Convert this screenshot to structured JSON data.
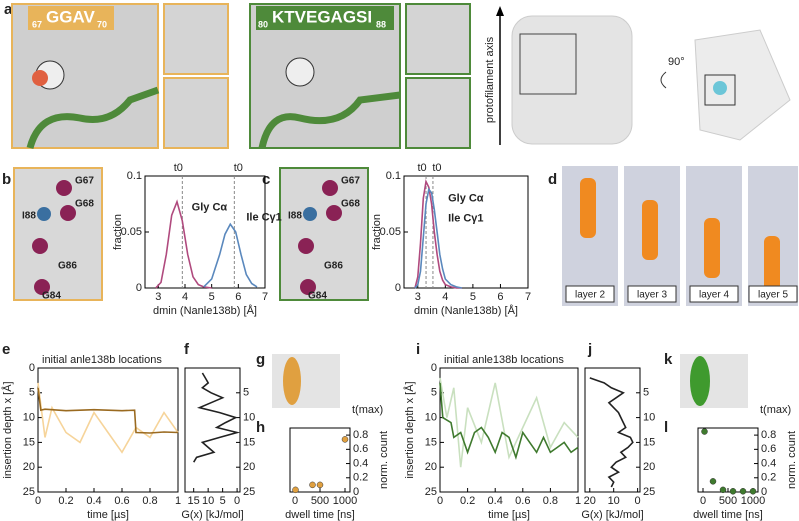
{
  "figure": {
    "panels": [
      "a",
      "b",
      "c",
      "d",
      "e",
      "f",
      "g",
      "h",
      "i",
      "j",
      "k",
      "l"
    ],
    "motif1": {
      "text": "GGAV",
      "start": "67",
      "end": "70"
    },
    "motif2": {
      "text": "KTVEGAGSI",
      "start": "80",
      "end": "88"
    },
    "axis_label": "protofilament axis",
    "rotation": "90°",
    "residues_b": [
      "G67",
      "G68",
      "I88",
      "G86",
      "G84"
    ],
    "residues_c": [
      "G67",
      "G68",
      "I88",
      "G86",
      "G84"
    ],
    "layers": [
      "layer 2",
      "layer 3",
      "layer 4",
      "layer 5"
    ]
  },
  "chart_data": [
    {
      "type": "line",
      "xlabel": "dmin (Nanle138b) [Å]",
      "ylabel": "fraction",
      "xlim": [
        2.5,
        7
      ],
      "xticks": [
        3,
        4,
        5,
        6,
        7
      ],
      "ylim": [
        0,
        0.1
      ],
      "yticks": [
        0,
        0.05,
        0.1
      ],
      "series": [
        {
          "name": "Gly Cα",
          "color": "#b04a7e",
          "x": [
            2.9,
            3.1,
            3.3,
            3.5,
            3.7,
            3.9,
            4.1,
            4.3,
            4.5,
            4.7,
            5.0
          ],
          "values": [
            0,
            0.005,
            0.03,
            0.065,
            0.077,
            0.06,
            0.03,
            0.01,
            0.003,
            0.001,
            0
          ]
        },
        {
          "name": "Ile Cγ1",
          "color": "#5a88bd",
          "x": [
            4.7,
            5.0,
            5.3,
            5.5,
            5.7,
            5.9,
            6.1,
            6.3,
            6.5,
            6.7
          ],
          "values": [
            0.001,
            0.008,
            0.03,
            0.048,
            0.057,
            0.05,
            0.03,
            0.012,
            0.004,
            0.001
          ]
        }
      ],
      "vlines": [
        {
          "value": 3.9,
          "label": "t0",
          "color": "#b04a7e"
        },
        {
          "value": 5.85,
          "label": "t0",
          "color": "#5a88bd"
        }
      ]
    },
    {
      "type": "line",
      "xlabel": "dmin (Nanle138b) [Å]",
      "ylabel": "fraction",
      "xlim": [
        2.5,
        7
      ],
      "xticks": [
        3,
        4,
        5,
        6,
        7
      ],
      "ylim": [
        0,
        0.1
      ],
      "yticks": [
        0,
        0.05,
        0.1
      ],
      "series": [
        {
          "name": "Gly Cα",
          "color": "#b04a7e",
          "x": [
            2.9,
            3.0,
            3.1,
            3.2,
            3.3,
            3.4,
            3.5,
            3.6,
            3.7,
            3.8,
            3.9,
            4.0,
            4.2,
            4.4,
            4.6
          ],
          "values": [
            0,
            0.01,
            0.04,
            0.08,
            0.095,
            0.09,
            0.075,
            0.05,
            0.03,
            0.015,
            0.007,
            0.003,
            0.001,
            0,
            0
          ]
        },
        {
          "name": "Ile Cγ1",
          "color": "#5a88bd",
          "x": [
            2.9,
            3.0,
            3.1,
            3.2,
            3.3,
            3.4,
            3.5,
            3.6,
            3.7,
            3.8,
            3.9,
            4.0,
            4.2,
            4.4,
            4.6
          ],
          "values": [
            0,
            0.003,
            0.015,
            0.045,
            0.075,
            0.088,
            0.085,
            0.07,
            0.05,
            0.03,
            0.017,
            0.008,
            0.003,
            0.001,
            0
          ]
        }
      ],
      "vlines": [
        {
          "value": 3.3,
          "label": "t0",
          "color": "#5a88bd"
        },
        {
          "value": 3.55,
          "label": "t0",
          "color": "#b04a7e"
        }
      ]
    },
    {
      "type": "line",
      "xlabel": "time [µs]",
      "ylabel": "insertion depth x [Å]",
      "annotation": "initial anle138b locations",
      "xlim": [
        0,
        1
      ],
      "xticks": [
        0,
        0.2,
        0.4,
        0.6,
        0.8,
        1
      ],
      "ylim": [
        25,
        0
      ],
      "yticks": [
        0,
        5,
        10,
        15,
        20,
        25
      ],
      "series": [
        {
          "color": "#f6d49a",
          "x": [
            0,
            0.05,
            0.1,
            0.2,
            0.3,
            0.4,
            0.5,
            0.6,
            0.7,
            0.8,
            0.9,
            1
          ],
          "values": [
            3,
            14,
            8,
            13,
            15,
            9,
            13,
            17,
            12,
            14,
            9,
            13
          ]
        },
        {
          "color": "#9a6a20",
          "x": [
            0,
            0.02,
            0.05,
            0.2,
            0.4,
            0.6,
            0.69,
            0.7,
            0.8,
            0.9,
            1
          ],
          "values": [
            4,
            8.5,
            8.3,
            8.6,
            8.4,
            8.6,
            8.5,
            13,
            13.1,
            12.9,
            13
          ]
        }
      ]
    },
    {
      "type": "line",
      "xlabel": "G(x) [kJ/mol]",
      "xlim": [
        18,
        -1
      ],
      "xticks": [
        15,
        10,
        5,
        0
      ],
      "ylim": [
        25,
        0
      ],
      "yticks": [
        5,
        10,
        15,
        20,
        25
      ],
      "series": [
        {
          "color": "#222222",
          "x": [
            12,
            11,
            10,
            12,
            9,
            5,
            9,
            13,
            6,
            0.5,
            4,
            7,
            0,
            6,
            12,
            10,
            8,
            14,
            15
          ],
          "values": [
            1,
            2,
            3,
            4,
            5,
            6,
            7,
            8,
            9,
            10,
            11,
            12,
            13,
            14,
            15,
            16,
            17,
            18,
            19
          ]
        }
      ]
    },
    {
      "type": "scatter",
      "xlabel": "dwell time [ns]",
      "ylabel": "norm. count",
      "annotation": "t(max)",
      "color": "#e0a040",
      "xlim": [
        -100,
        1100
      ],
      "xticks": [
        0,
        500,
        1000
      ],
      "ylim": [
        0,
        0.9
      ],
      "yticks": [
        0,
        0.2,
        0.4,
        0.6,
        0.8
      ],
      "x": [
        10,
        350,
        500,
        1000
      ],
      "values": [
        0.03,
        0.1,
        0.1,
        0.74
      ]
    },
    {
      "type": "line",
      "xlabel": "time [µs]",
      "ylabel": "insertion depth x [Å]",
      "annotation": "initial anle138b locations",
      "xlim": [
        0,
        1
      ],
      "xticks": [
        0,
        0.2,
        0.4,
        0.6,
        0.8,
        1
      ],
      "ylim": [
        25,
        0
      ],
      "yticks": [
        0,
        5,
        10,
        15,
        20,
        25
      ],
      "series": [
        {
          "color": "#c9e0bf",
          "x": [
            0,
            0.05,
            0.1,
            0.15,
            0.2,
            0.3,
            0.4,
            0.5,
            0.6,
            0.7,
            0.8,
            0.9,
            1
          ],
          "values": [
            2,
            10,
            4,
            20,
            8,
            15,
            3,
            18,
            12,
            6,
            16,
            11,
            14
          ]
        },
        {
          "color": "#3f7a2e",
          "x": [
            0,
            0.02,
            0.08,
            0.1,
            0.15,
            0.2,
            0.25,
            0.3,
            0.35,
            0.4,
            0.45,
            0.5,
            0.55,
            0.6,
            0.65,
            0.7,
            0.75,
            0.8,
            0.85,
            0.9,
            0.95,
            1
          ],
          "values": [
            3,
            10,
            11,
            14,
            13,
            17,
            13,
            12,
            14,
            17,
            13,
            14,
            18,
            13,
            15,
            17,
            14,
            17,
            16,
            15,
            17,
            16
          ]
        }
      ]
    },
    {
      "type": "line",
      "xlabel": "G(x) [kJ/mol]",
      "xlim": [
        22,
        -1
      ],
      "xticks": [
        20,
        10,
        0
      ],
      "ylim": [
        25,
        0
      ],
      "yticks": [
        5,
        10,
        15,
        20,
        25
      ],
      "series": [
        {
          "color": "#222222",
          "x": [
            20,
            14,
            11,
            6,
            9,
            12,
            10,
            8,
            7,
            6,
            5,
            8,
            3,
            2,
            4,
            7,
            5,
            9,
            11,
            8,
            12,
            10,
            11
          ],
          "values": [
            2,
            3,
            4,
            5,
            6,
            7,
            8,
            9,
            10,
            11,
            12,
            13,
            14,
            15,
            16,
            17,
            18,
            19,
            20,
            21,
            22,
            23,
            24
          ]
        }
      ]
    },
    {
      "type": "scatter",
      "xlabel": "dwell time [ns]",
      "ylabel": "norm. count",
      "annotation": "t(max)",
      "color": "#3f7a2e",
      "xlim": [
        -100,
        1100
      ],
      "xticks": [
        0,
        500,
        1000
      ],
      "ylim": [
        0,
        0.9
      ],
      "yticks": [
        0,
        0.2,
        0.4,
        0.6,
        0.8
      ],
      "x": [
        30,
        200,
        400,
        600,
        800,
        1000
      ],
      "values": [
        0.85,
        0.15,
        0.03,
        0.01,
        0.01,
        0.01
      ]
    }
  ]
}
